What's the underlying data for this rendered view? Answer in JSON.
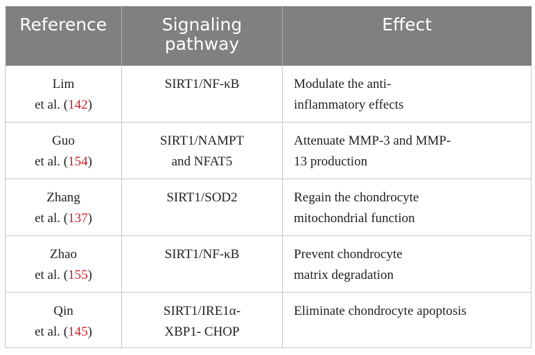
{
  "header": {
    "reference": "Reference",
    "signaling_line1": "Signaling",
    "signaling_line2": "pathway",
    "effect": "Effect"
  },
  "rows": [
    {
      "author": "Lim",
      "etal_prefix": "et al. (",
      "cite": "142",
      "etal_suffix": ")",
      "pathway_line1": "SIRT1/NF-κB",
      "pathway_line2": "",
      "effect_line1": "Modulate the anti-",
      "effect_line2": "inflammatory effects"
    },
    {
      "author": "Guo",
      "etal_prefix": "et al. (",
      "cite": "154",
      "etal_suffix": ")",
      "pathway_line1": "SIRT1/NAMPT",
      "pathway_line2": "and NFAT5",
      "effect_line1": "Attenuate MMP-3 and MMP-",
      "effect_line2": "13 production"
    },
    {
      "author": "Zhang",
      "etal_prefix": "et al. (",
      "cite": "137",
      "etal_suffix": ")",
      "pathway_line1": "SIRT1/SOD2",
      "pathway_line2": "",
      "effect_line1": "Regain the chondrocyte",
      "effect_line2": "mitochondrial function"
    },
    {
      "author": "Zhao",
      "etal_prefix": "et al. (",
      "cite": "155",
      "etal_suffix": ")",
      "pathway_line1": "SIRT1/NF-κB",
      "pathway_line2": "",
      "effect_line1": "Prevent chondrocyte",
      "effect_line2": "matrix degradation"
    },
    {
      "author": "Qin",
      "etal_prefix": "et al. (",
      "cite": "145",
      "etal_suffix": ")",
      "pathway_line1": "SIRT1/IRE1α-",
      "pathway_line2": "XBP1- CHOP",
      "effect_line1": "Eliminate chondrocyte apoptosis",
      "effect_line2": ""
    }
  ],
  "colors": {
    "header_bg": "#808080",
    "header_text": "#ffffff",
    "citation": "#cc2027",
    "border": "#c8c8c8"
  }
}
